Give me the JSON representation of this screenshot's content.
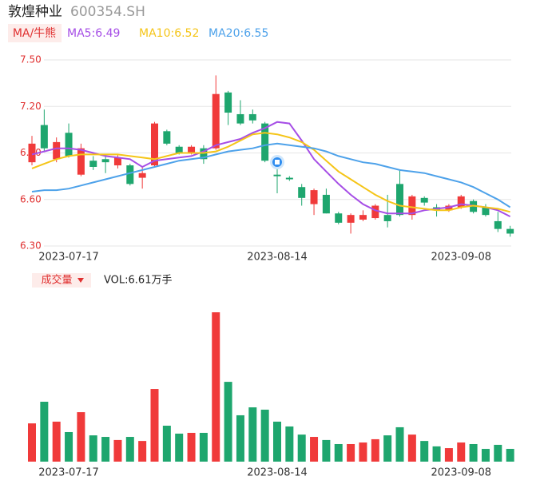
{
  "header": {
    "name": "敦煌种业",
    "code": "600354.SH"
  },
  "chart_data": [
    {
      "type": "candlestick",
      "legend_button": "MA/牛熊",
      "categories": [
        null,
        null,
        null,
        "2023-07-17",
        null,
        null,
        null,
        null,
        null,
        null,
        null,
        null,
        null,
        null,
        null,
        null,
        null,
        null,
        null,
        null,
        "2023-08-14",
        null,
        null,
        null,
        null,
        null,
        null,
        null,
        null,
        null,
        null,
        null,
        null,
        null,
        null,
        "2023-09-08",
        null,
        null,
        null,
        null
      ],
      "open": [
        6.84,
        7.08,
        6.86,
        7.03,
        6.76,
        6.85,
        6.86,
        6.82,
        6.82,
        6.74,
        6.82,
        7.04,
        6.94,
        6.9,
        6.93,
        6.93,
        7.29,
        7.15,
        7.15,
        7.09,
        6.76,
        6.74,
        6.68,
        6.57,
        6.63,
        6.51,
        6.45,
        6.47,
        6.48,
        6.5,
        6.7,
        6.5,
        6.61,
        6.55,
        6.53,
        6.55,
        6.59,
        6.55,
        6.46,
        6.41
      ],
      "high": [
        7.01,
        7.18,
        7.0,
        7.09,
        6.96,
        6.88,
        6.89,
        6.89,
        6.83,
        6.81,
        7.1,
        7.05,
        6.95,
        6.95,
        6.95,
        7.4,
        7.3,
        7.24,
        7.18,
        7.1,
        6.8,
        6.75,
        6.7,
        6.67,
        6.67,
        6.52,
        6.51,
        6.53,
        6.57,
        6.63,
        6.79,
        6.63,
        6.62,
        6.57,
        6.57,
        6.63,
        6.6,
        6.57,
        6.52,
        6.43
      ],
      "low": [
        6.82,
        6.91,
        6.84,
        6.87,
        6.75,
        6.79,
        6.77,
        6.8,
        6.69,
        6.67,
        6.81,
        6.95,
        6.89,
        6.89,
        6.83,
        6.92,
        7.08,
        7.08,
        7.09,
        6.84,
        6.64,
        6.72,
        6.56,
        6.5,
        6.51,
        6.44,
        6.38,
        6.46,
        6.47,
        6.42,
        6.49,
        6.47,
        6.56,
        6.49,
        6.52,
        6.54,
        6.51,
        6.49,
        6.39,
        6.36
      ],
      "close": [
        6.96,
        6.93,
        6.97,
        6.88,
        6.93,
        6.81,
        6.84,
        6.87,
        6.7,
        6.77,
        7.09,
        6.96,
        6.9,
        6.94,
        6.86,
        7.28,
        7.16,
        7.09,
        7.11,
        6.85,
        6.75,
        6.73,
        6.61,
        6.66,
        6.51,
        6.45,
        6.5,
        6.5,
        6.56,
        6.46,
        6.5,
        6.62,
        6.58,
        6.53,
        6.56,
        6.62,
        6.52,
        6.5,
        6.41,
        6.38
      ],
      "up_color": "#f03a3a",
      "down_color": "#1ea66e",
      "series": [
        {
          "name": "MA5:6.49",
          "color": "#a64ee6",
          "values": [
            6.89,
            6.91,
            6.93,
            6.93,
            6.92,
            6.9,
            6.88,
            6.87,
            6.86,
            6.81,
            6.85,
            6.86,
            6.87,
            6.88,
            6.91,
            6.95,
            6.97,
            6.99,
            7.03,
            7.06,
            7.1,
            7.09,
            6.98,
            6.86,
            6.78,
            6.7,
            6.63,
            6.57,
            6.53,
            6.51,
            6.51,
            6.51,
            6.53,
            6.54,
            6.55,
            6.57,
            6.56,
            6.55,
            6.53,
            6.49
          ]
        },
        {
          "name": "MA10:6.52",
          "color": "#f5c518",
          "values": [
            6.8,
            6.83,
            6.86,
            6.88,
            6.89,
            6.89,
            6.89,
            6.89,
            6.88,
            6.87,
            6.86,
            6.88,
            6.9,
            6.9,
            6.9,
            6.91,
            6.94,
            6.98,
            7.02,
            7.03,
            7.02,
            7.0,
            6.97,
            6.92,
            6.85,
            6.78,
            6.73,
            6.68,
            6.63,
            6.59,
            6.56,
            6.55,
            6.54,
            6.53,
            6.53,
            6.55,
            6.56,
            6.55,
            6.54,
            6.52
          ]
        },
        {
          "name": "MA20:6.55",
          "color": "#4ea2ea",
          "values": [
            6.65,
            6.66,
            6.66,
            6.67,
            6.69,
            6.71,
            6.73,
            6.75,
            6.77,
            6.79,
            6.81,
            6.83,
            6.85,
            6.86,
            6.87,
            6.89,
            6.91,
            6.92,
            6.93,
            6.95,
            6.96,
            6.95,
            6.94,
            6.93,
            6.91,
            6.88,
            6.86,
            6.84,
            6.83,
            6.81,
            6.79,
            6.78,
            6.77,
            6.75,
            6.73,
            6.71,
            6.68,
            6.64,
            6.6,
            6.55
          ]
        }
      ],
      "ylim": [
        6.3,
        7.5
      ],
      "yticks": [
        {
          "value": 7.5,
          "label": "7.50"
        },
        {
          "value": 7.2,
          "label": "7.20"
        },
        {
          "value": 6.9,
          "label": "6.90"
        },
        {
          "value": 6.6,
          "label": "6.60"
        },
        {
          "value": 6.3,
          "label": "6.30"
        }
      ],
      "grid": true
    },
    {
      "type": "bar",
      "title": "成交量",
      "label": "VOL:6.61万手",
      "categories": [
        null,
        null,
        null,
        "2023-07-17",
        null,
        null,
        null,
        null,
        null,
        null,
        null,
        null,
        null,
        null,
        null,
        null,
        null,
        null,
        null,
        null,
        "2023-08-14",
        null,
        null,
        null,
        null,
        null,
        null,
        null,
        null,
        null,
        null,
        null,
        null,
        null,
        null,
        "2023-09-08",
        null,
        null,
        null,
        null
      ],
      "values": [
        19.8,
        31,
        20.7,
        15.3,
        25.6,
        13.6,
        12.8,
        11.2,
        12.8,
        10.7,
        37.6,
        18.6,
        14.5,
        14.9,
        14.9,
        77.3,
        41.3,
        24,
        28.1,
        26.9,
        20.7,
        18.2,
        14,
        12.8,
        11.2,
        9.1,
        9.1,
        9.9,
        11.6,
        13.6,
        17.8,
        14,
        10.7,
        7.9,
        7,
        9.9,
        9.1,
        6.6,
        8.7,
        6.61
      ]
    }
  ]
}
